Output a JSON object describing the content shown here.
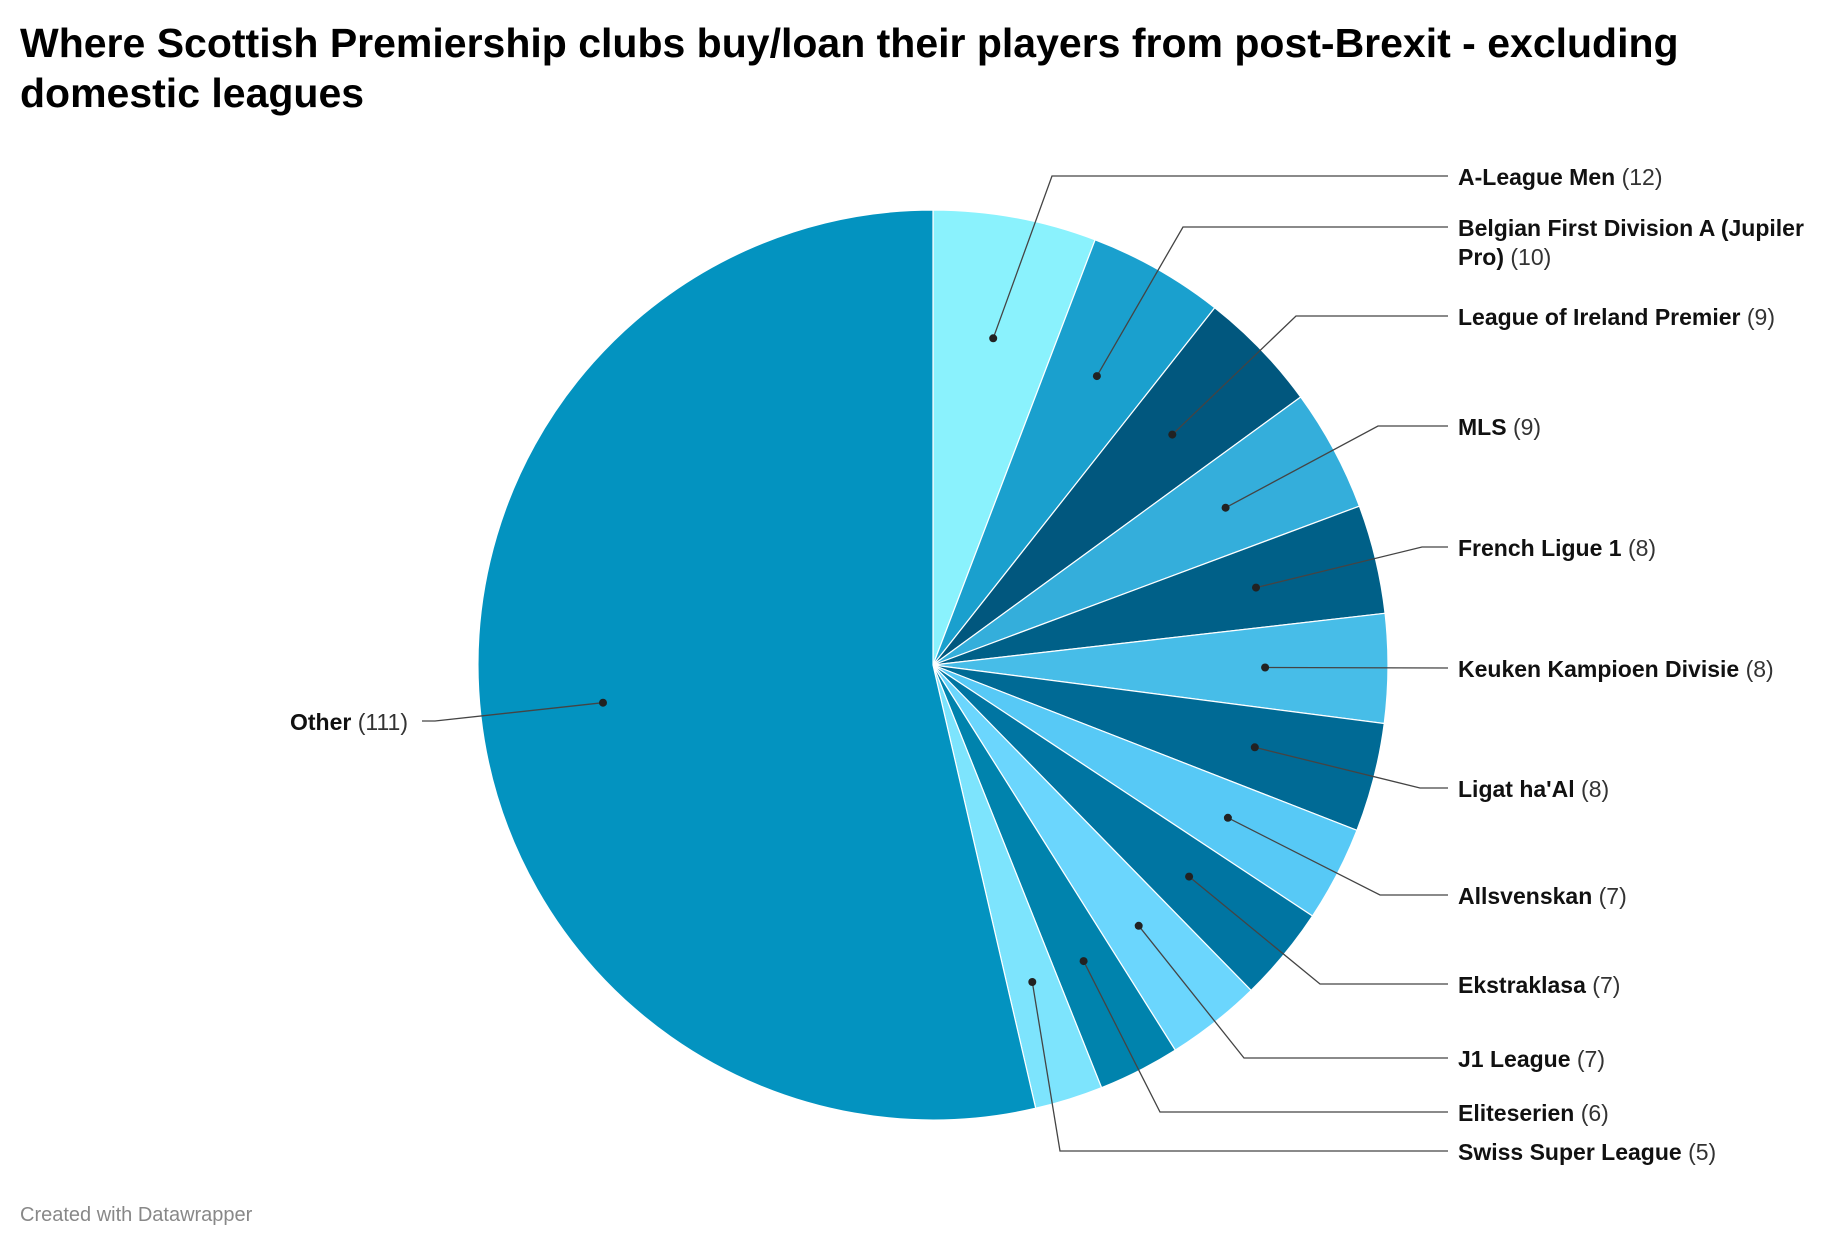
{
  "chart_data": {
    "type": "pie",
    "title": "Where Scottish Premiership clubs buy/loan their players from post-Brexit - excluding domestic leagues",
    "slices": [
      {
        "name": "A-League Men",
        "value": 12,
        "color": "#8af2fd"
      },
      {
        "name": "Belgian First Division A (Jupiler Pro)",
        "value": 10,
        "color": "#1aa0ce"
      },
      {
        "name": "League of Ireland Premier",
        "value": 9,
        "color": "#01577e"
      },
      {
        "name": "MLS",
        "value": 9,
        "color": "#34aedb"
      },
      {
        "name": "French Ligue 1",
        "value": 8,
        "color": "#006088"
      },
      {
        "name": "Keuken Kampioen Divisie",
        "value": 8,
        "color": "#47bde8"
      },
      {
        "name": "Ligat ha'Al",
        "value": 8,
        "color": "#006a95"
      },
      {
        "name": "Allsvenskan",
        "value": 7,
        "color": "#57c9f6"
      },
      {
        "name": "Ekstraklasa",
        "value": 7,
        "color": "#0075a2"
      },
      {
        "name": "J1 League",
        "value": 7,
        "color": "#6bd6fd"
      },
      {
        "name": "Eliteserien",
        "value": 6,
        "color": "#0083ad"
      },
      {
        "name": "Swiss Super League",
        "value": 5,
        "color": "#7de4fd"
      },
      {
        "name": "Other",
        "value": 111,
        "color": "#0393c0"
      }
    ]
  },
  "footer": {
    "credit": "Created with Datawrapper"
  }
}
